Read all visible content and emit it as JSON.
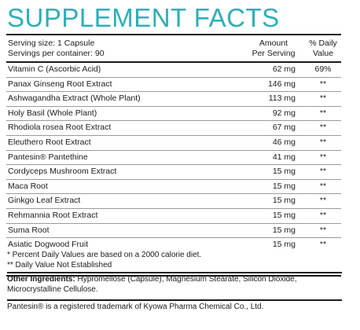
{
  "title": "SUPPLEMENT FACTS",
  "header": {
    "serving_size": "Serving size: 1 Capsule",
    "servings_per_container": "Servings per container: 90",
    "amount_line1": "Amount",
    "amount_line2": "Per Serving",
    "dv_line1": "% Daily",
    "dv_line2": "Value"
  },
  "rows": [
    {
      "name": "Vitamin C (Ascorbic Acid)",
      "amount": "62 mg",
      "dv": "69%"
    },
    {
      "name": "Panax Ginseng Root Extract",
      "amount": "146 mg",
      "dv": "**"
    },
    {
      "name": "Ashwagandha Extract (Whole Plant)",
      "amount": "113 mg",
      "dv": "**"
    },
    {
      "name": "Holy Basil (Whole Plant)",
      "amount": "92 mg",
      "dv": "**"
    },
    {
      "name": "Rhodiola rosea Root Extract",
      "amount": "67 mg",
      "dv": "**"
    },
    {
      "name": "Eleuthero Root Extract",
      "amount": "46 mg",
      "dv": "**"
    },
    {
      "name": "Pantesin® Pantethine",
      "amount": "41 mg",
      "dv": "**"
    },
    {
      "name": "Cordyceps Mushroom Extract",
      "amount": "15 mg",
      "dv": "**"
    },
    {
      "name": "Maca Root",
      "amount": "15 mg",
      "dv": "**"
    },
    {
      "name": "Ginkgo Leaf Extract",
      "amount": "15 mg",
      "dv": "**"
    },
    {
      "name": "Rehmannia Root Extract",
      "amount": "15 mg",
      "dv": "**"
    },
    {
      "name": "Suma Root",
      "amount": "15 mg",
      "dv": "**"
    },
    {
      "name": "Asiatic Dogwood Fruit",
      "amount": "15 mg",
      "dv": "**"
    }
  ],
  "footnotes": {
    "percent_note": "* Percent Daily Values are based on a 2000 calorie diet.",
    "dv_note": "** Daily Value Not Established"
  },
  "ingredients": {
    "label": "Other Ingredients:",
    "text": " Hypromellose (Capsule), Magnesium Stearate, Silicon Dioxide, Microcrystalline Cellulose."
  },
  "trademark": "Pantesin® is a registered trademark of Kyowa Pharma Chemical Co., Ltd."
}
